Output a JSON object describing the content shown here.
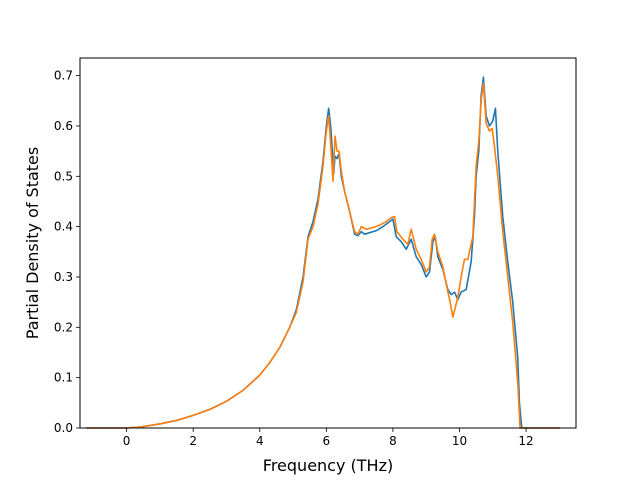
{
  "chart_data": {
    "type": "line",
    "title": "",
    "xlabel": "Frequency (THz)",
    "ylabel": "Partial Density of States",
    "xlim": [
      -1.4,
      13.5
    ],
    "ylim": [
      0.0,
      0.735
    ],
    "xticks": [
      0,
      2,
      4,
      6,
      8,
      10,
      12
    ],
    "yticks": [
      0.0,
      0.1,
      0.2,
      0.3,
      0.4,
      0.5,
      0.6,
      0.7
    ],
    "xtick_labels": [
      "0",
      "2",
      "4",
      "6",
      "8",
      "10",
      "12"
    ],
    "ytick_labels": [
      "0.0",
      "0.1",
      "0.2",
      "0.3",
      "0.4",
      "0.5",
      "0.6",
      "0.7"
    ],
    "grid": false,
    "legend": "none",
    "series": [
      {
        "color": "#1f77b4",
        "points": [
          [
            -1.2,
            0.0
          ],
          [
            0.0,
            0.0
          ],
          [
            0.4,
            0.002
          ],
          [
            1.0,
            0.008
          ],
          [
            1.5,
            0.015
          ],
          [
            2.0,
            0.025
          ],
          [
            2.5,
            0.037
          ],
          [
            3.0,
            0.053
          ],
          [
            3.5,
            0.075
          ],
          [
            4.0,
            0.105
          ],
          [
            4.3,
            0.13
          ],
          [
            4.6,
            0.16
          ],
          [
            4.9,
            0.2
          ],
          [
            5.1,
            0.235
          ],
          [
            5.3,
            0.3
          ],
          [
            5.45,
            0.38
          ],
          [
            5.6,
            0.41
          ],
          [
            5.75,
            0.455
          ],
          [
            5.9,
            0.53
          ],
          [
            6.0,
            0.6
          ],
          [
            6.07,
            0.635
          ],
          [
            6.13,
            0.6
          ],
          [
            6.18,
            0.55
          ],
          [
            6.22,
            0.505
          ],
          [
            6.26,
            0.54
          ],
          [
            6.32,
            0.535
          ],
          [
            6.38,
            0.545
          ],
          [
            6.45,
            0.5
          ],
          [
            6.55,
            0.47
          ],
          [
            6.7,
            0.43
          ],
          [
            6.85,
            0.385
          ],
          [
            6.95,
            0.382
          ],
          [
            7.05,
            0.39
          ],
          [
            7.15,
            0.385
          ],
          [
            7.3,
            0.388
          ],
          [
            7.5,
            0.392
          ],
          [
            7.7,
            0.4
          ],
          [
            7.9,
            0.41
          ],
          [
            8.0,
            0.415
          ],
          [
            8.1,
            0.38
          ],
          [
            8.25,
            0.37
          ],
          [
            8.4,
            0.355
          ],
          [
            8.55,
            0.375
          ],
          [
            8.7,
            0.34
          ],
          [
            8.85,
            0.325
          ],
          [
            9.0,
            0.3
          ],
          [
            9.1,
            0.31
          ],
          [
            9.2,
            0.37
          ],
          [
            9.27,
            0.38
          ],
          [
            9.35,
            0.34
          ],
          [
            9.5,
            0.315
          ],
          [
            9.65,
            0.275
          ],
          [
            9.75,
            0.265
          ],
          [
            9.85,
            0.27
          ],
          [
            9.95,
            0.255
          ],
          [
            10.05,
            0.27
          ],
          [
            10.2,
            0.275
          ],
          [
            10.35,
            0.33
          ],
          [
            10.45,
            0.42
          ],
          [
            10.5,
            0.5
          ],
          [
            10.58,
            0.55
          ],
          [
            10.65,
            0.66
          ],
          [
            10.72,
            0.697
          ],
          [
            10.8,
            0.62
          ],
          [
            10.9,
            0.6
          ],
          [
            11.0,
            0.61
          ],
          [
            11.08,
            0.635
          ],
          [
            11.15,
            0.55
          ],
          [
            11.3,
            0.42
          ],
          [
            11.45,
            0.33
          ],
          [
            11.6,
            0.25
          ],
          [
            11.75,
            0.14
          ],
          [
            11.8,
            0.05
          ],
          [
            11.87,
            0.0
          ],
          [
            13.0,
            0.0
          ]
        ]
      },
      {
        "color": "#ff7f0e",
        "points": [
          [
            -1.2,
            0.0
          ],
          [
            0.0,
            0.0
          ],
          [
            0.4,
            0.002
          ],
          [
            1.0,
            0.008
          ],
          [
            1.5,
            0.015
          ],
          [
            2.0,
            0.025
          ],
          [
            2.5,
            0.037
          ],
          [
            3.0,
            0.053
          ],
          [
            3.5,
            0.075
          ],
          [
            4.0,
            0.105
          ],
          [
            4.3,
            0.13
          ],
          [
            4.6,
            0.16
          ],
          [
            4.9,
            0.2
          ],
          [
            5.1,
            0.23
          ],
          [
            5.3,
            0.29
          ],
          [
            5.45,
            0.375
          ],
          [
            5.6,
            0.4
          ],
          [
            5.75,
            0.445
          ],
          [
            5.9,
            0.52
          ],
          [
            6.0,
            0.59
          ],
          [
            6.07,
            0.62
          ],
          [
            6.13,
            0.565
          ],
          [
            6.2,
            0.49
          ],
          [
            6.26,
            0.58
          ],
          [
            6.32,
            0.55
          ],
          [
            6.38,
            0.55
          ],
          [
            6.45,
            0.51
          ],
          [
            6.55,
            0.47
          ],
          [
            6.7,
            0.43
          ],
          [
            6.85,
            0.39
          ],
          [
            6.95,
            0.385
          ],
          [
            7.05,
            0.4
          ],
          [
            7.2,
            0.395
          ],
          [
            7.4,
            0.398
          ],
          [
            7.6,
            0.403
          ],
          [
            7.8,
            0.41
          ],
          [
            7.95,
            0.418
          ],
          [
            8.05,
            0.42
          ],
          [
            8.12,
            0.39
          ],
          [
            8.3,
            0.375
          ],
          [
            8.45,
            0.365
          ],
          [
            8.55,
            0.395
          ],
          [
            8.7,
            0.355
          ],
          [
            8.85,
            0.335
          ],
          [
            9.0,
            0.31
          ],
          [
            9.1,
            0.32
          ],
          [
            9.18,
            0.375
          ],
          [
            9.25,
            0.385
          ],
          [
            9.35,
            0.35
          ],
          [
            9.5,
            0.32
          ],
          [
            9.62,
            0.28
          ],
          [
            9.72,
            0.25
          ],
          [
            9.8,
            0.22
          ],
          [
            9.95,
            0.26
          ],
          [
            10.05,
            0.3
          ],
          [
            10.15,
            0.335
          ],
          [
            10.25,
            0.335
          ],
          [
            10.4,
            0.38
          ],
          [
            10.5,
            0.52
          ],
          [
            10.58,
            0.57
          ],
          [
            10.65,
            0.65
          ],
          [
            10.72,
            0.685
          ],
          [
            10.8,
            0.605
          ],
          [
            10.9,
            0.59
          ],
          [
            10.98,
            0.595
          ],
          [
            11.05,
            0.56
          ],
          [
            11.15,
            0.5
          ],
          [
            11.3,
            0.39
          ],
          [
            11.45,
            0.3
          ],
          [
            11.6,
            0.21
          ],
          [
            11.75,
            0.09
          ],
          [
            11.82,
            0.0
          ],
          [
            13.0,
            0.0
          ]
        ]
      }
    ]
  }
}
